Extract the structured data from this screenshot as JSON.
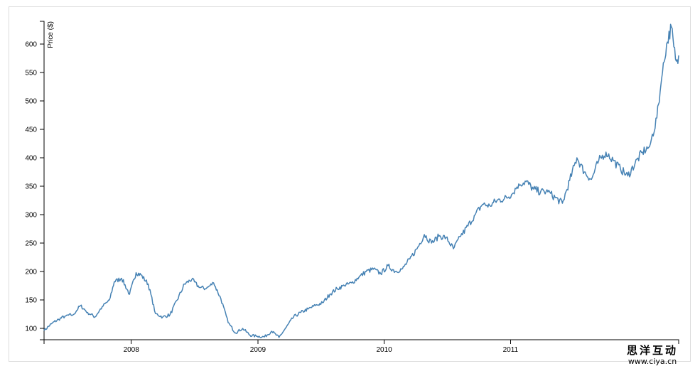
{
  "chart_data": {
    "type": "line",
    "title": "",
    "xlabel": "",
    "ylabel": "Price ($)",
    "x_tick_labels": [
      "2008",
      "2009",
      "2010",
      "2011"
    ],
    "y_tick_labels": [
      "100",
      "150",
      "200",
      "250",
      "300",
      "350",
      "400",
      "450",
      "500",
      "550",
      "600"
    ],
    "ylim": [
      80,
      640
    ],
    "xlim": [
      "2007-04-24",
      "2012-05-01"
    ],
    "grid": false,
    "line_color": "#4682b4",
    "series": [
      {
        "x": [
          "2007-04-24",
          "2007-05-15",
          "2007-06-05",
          "2007-06-26",
          "2007-07-17",
          "2007-08-07",
          "2007-08-28",
          "2007-09-18",
          "2007-10-09",
          "2007-10-30",
          "2007-11-13",
          "2007-12-04",
          "2007-12-27",
          "2008-01-15",
          "2008-01-29",
          "2008-02-19",
          "2008-03-11",
          "2008-04-01",
          "2008-04-22",
          "2008-05-13",
          "2008-06-03",
          "2008-06-24",
          "2008-07-15",
          "2008-08-05",
          "2008-08-26",
          "2008-09-16",
          "2008-10-07",
          "2008-10-28",
          "2008-11-18",
          "2008-12-09",
          "2008-12-30",
          "2009-01-20",
          "2009-02-10",
          "2009-03-03",
          "2009-03-24",
          "2009-04-14",
          "2009-05-05",
          "2009-05-26",
          "2009-06-16",
          "2009-07-07",
          "2009-07-28",
          "2009-08-18",
          "2009-09-08",
          "2009-09-29",
          "2009-10-20",
          "2009-11-10",
          "2009-12-01",
          "2009-12-22",
          "2010-01-12",
          "2010-02-02",
          "2010-02-23",
          "2010-03-16",
          "2010-04-06",
          "2010-04-27",
          "2010-05-18",
          "2010-06-08",
          "2010-06-29",
          "2010-07-20",
          "2010-08-10",
          "2010-08-31",
          "2010-09-21",
          "2010-10-12",
          "2010-11-02",
          "2010-11-23",
          "2010-12-14",
          "2011-01-04",
          "2011-01-25",
          "2011-02-15",
          "2011-03-08",
          "2011-03-29",
          "2011-04-19",
          "2011-05-10",
          "2011-05-31",
          "2011-06-21",
          "2011-07-12",
          "2011-08-02",
          "2011-08-23",
          "2011-09-13",
          "2011-10-04",
          "2011-10-25",
          "2011-11-15",
          "2011-12-06",
          "2011-12-27",
          "2012-01-17",
          "2012-02-07",
          "2012-02-28",
          "2012-03-13",
          "2012-03-27",
          "2012-04-10",
          "2012-04-17",
          "2012-04-24",
          "2012-05-01"
        ],
        "y": [
          96,
          108,
          116,
          122,
          124,
          140,
          128,
          120,
          138,
          150,
          182,
          188,
          160,
          198,
          194,
          178,
          126,
          120,
          124,
          150,
          178,
          186,
          172,
          170,
          180,
          152,
          110,
          92,
          100,
          88,
          86,
          85,
          95,
          84,
          102,
          120,
          128,
          134,
          140,
          145,
          160,
          170,
          175,
          180,
          190,
          200,
          204,
          196,
          210,
          200,
          205,
          222,
          240,
          265,
          250,
          262,
          260,
          240,
          262,
          280,
          300,
          318,
          316,
          325,
          328,
          335,
          354,
          358,
          345,
          340,
          340,
          330,
          320,
          360,
          400,
          375,
          362,
          395,
          410,
          395,
          380,
          368,
          390,
          410,
          420,
          470,
          540,
          600,
          630,
          595,
          570,
          580
        ]
      }
    ]
  },
  "watermark": {
    "title": "思洋互动",
    "url": "www.ciya.cn"
  }
}
